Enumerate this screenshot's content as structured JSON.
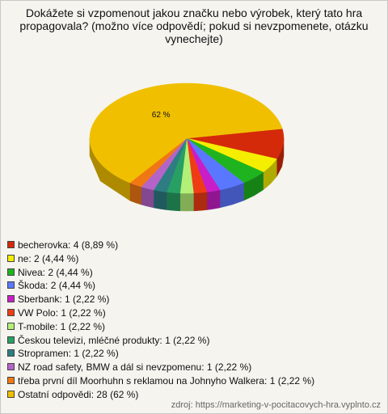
{
  "chart_data": {
    "type": "pie3d",
    "title": "Dokážete si vzpomenout jakou značku nebo výrobek, který tato hra propagovala? (možno více odpovědí; pokud si nevzpomenete, otázku vynechejte)",
    "categories": [
      "becherovka: 4 (8,89 %)",
      "ne: 2 (4,44 %)",
      "Nivea: 2 (4,44 %)",
      "Škoda: 2 (4,44 %)",
      "Sberbank: 1 (2,22 %)",
      "VW Polo: 1 (2,22 %)",
      "T-mobile: 1 (2,22 %)",
      "Českou televizi, mléčné produkty: 1 (2,22 %)",
      "Stropramen: 1 (2,22 %)",
      "NZ road safety, BMW a dál si nevzpomenu: 1 (2,22 %)",
      "třeba první díl Moorhuhn s reklamou na Johnyho Walkera: 1 (2,22 %)",
      "Ostatní odpovědi: 28 (62 %)"
    ],
    "values": [
      8.89,
      4.44,
      4.44,
      4.44,
      2.22,
      2.22,
      2.22,
      2.22,
      2.22,
      2.22,
      2.22,
      62.22
    ],
    "value_labels": [
      null,
      null,
      null,
      null,
      null,
      null,
      null,
      null,
      null,
      null,
      null,
      "62 %"
    ],
    "colors": [
      "#d42a0a",
      "#f5ee00",
      "#1fb41f",
      "#5a78ff",
      "#c81ec8",
      "#f03c14",
      "#b4f078",
      "#28a064",
      "#2d7d82",
      "#b464c8",
      "#f07814",
      "#f0c000"
    ],
    "source": "zdroj: https://marketing-v-pocitacovych-hra.vyplnto.cz"
  }
}
